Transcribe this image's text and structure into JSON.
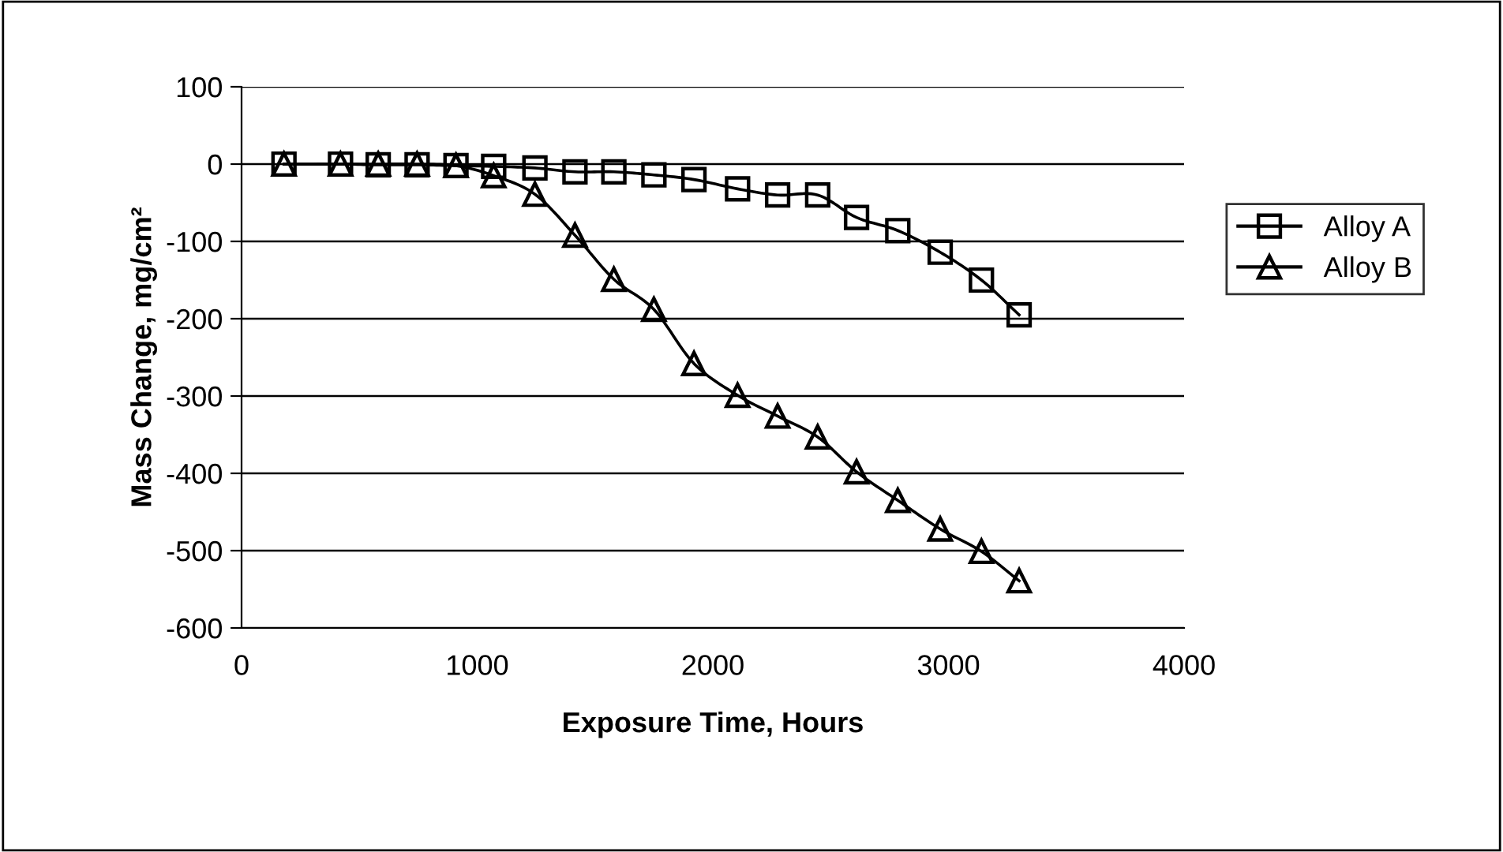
{
  "chart_data": {
    "type": "line",
    "xlabel": "Exposure Time, Hours",
    "ylabel": "Mass Change, mg/cm²",
    "x": [
      180,
      420,
      580,
      745,
      910,
      1070,
      1245,
      1415,
      1580,
      1750,
      1920,
      2105,
      2275,
      2445,
      2610,
      2785,
      2965,
      3140,
      3300
    ],
    "series": [
      {
        "name": "Alloy A",
        "color": "#000000",
        "marker": "square",
        "values": [
          0,
          0,
          -1,
          -1,
          -2,
          -3,
          -5,
          -10,
          -10,
          -14,
          -20,
          -32,
          -40,
          -40,
          -69,
          -86,
          -114,
          -150,
          -195
        ]
      },
      {
        "name": "Alloy B",
        "color": "#000000",
        "marker": "triangle",
        "values": [
          0,
          0,
          0,
          0,
          -2,
          -15,
          -39,
          -92,
          -149,
          -188,
          -258,
          -299,
          -326,
          -353,
          -398,
          -435,
          -472,
          -501,
          -539
        ]
      }
    ],
    "xlim": [
      0,
      4000
    ],
    "xticks": [
      0,
      1000,
      2000,
      3000,
      4000
    ],
    "ylim": [
      -600,
      100
    ],
    "yticks": [
      -600,
      -500,
      -400,
      -300,
      -200,
      -100,
      0,
      100
    ],
    "grid": "y",
    "legend": "right",
    "line_style": "solid"
  }
}
